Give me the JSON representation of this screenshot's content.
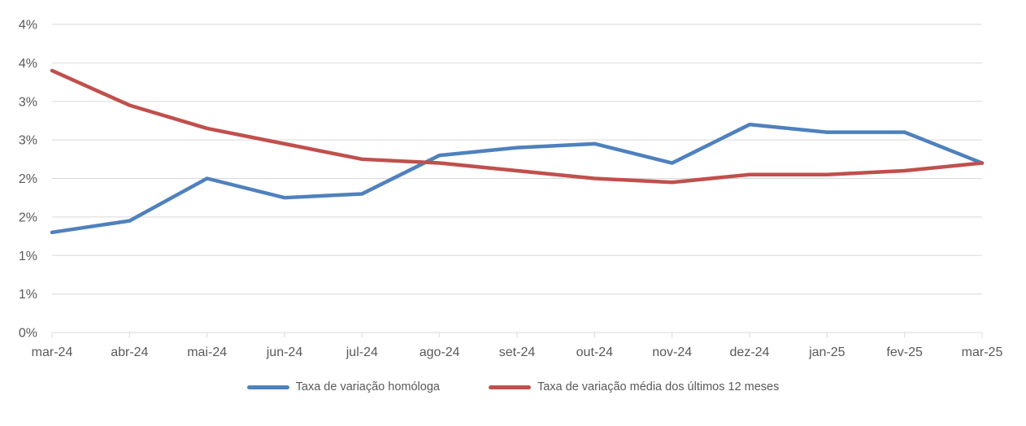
{
  "chart_data": {
    "type": "line",
    "categories": [
      "mar-24",
      "abr-24",
      "mai-24",
      "jun-24",
      "jul-24",
      "ago-24",
      "set-24",
      "out-24",
      "nov-24",
      "dez-24",
      "jan-25",
      "fev-25",
      "mar-25"
    ],
    "series": [
      {
        "name": "Taxa de variação homóloga",
        "color": "#4F81BD",
        "values": [
          1.3,
          1.45,
          2.0,
          1.75,
          1.8,
          2.3,
          2.4,
          2.45,
          2.2,
          2.7,
          2.6,
          2.6,
          2.2
        ]
      },
      {
        "name": "Taxa de variação média dos últimos 12 meses",
        "color": "#C0504D",
        "values": [
          3.4,
          2.95,
          2.65,
          2.45,
          2.25,
          2.2,
          2.1,
          2.0,
          1.95,
          2.05,
          2.05,
          2.1,
          2.2
        ]
      }
    ],
    "ylim": [
      0,
      4
    ],
    "ytick_step": 0.5,
    "ytick_labels_bottom_to_top": [
      "0%",
      "1%",
      "1%",
      "2%",
      "2%",
      "3%",
      "3%",
      "4%",
      "4%"
    ],
    "grid": "horizontal",
    "legend_position": "bottom-center",
    "colors": {
      "grid": "#D9D9D9",
      "axis": "#D9D9D9",
      "tick": "#D9D9D9",
      "axis_labels": "#595959",
      "background": "#FFFFFF"
    }
  }
}
